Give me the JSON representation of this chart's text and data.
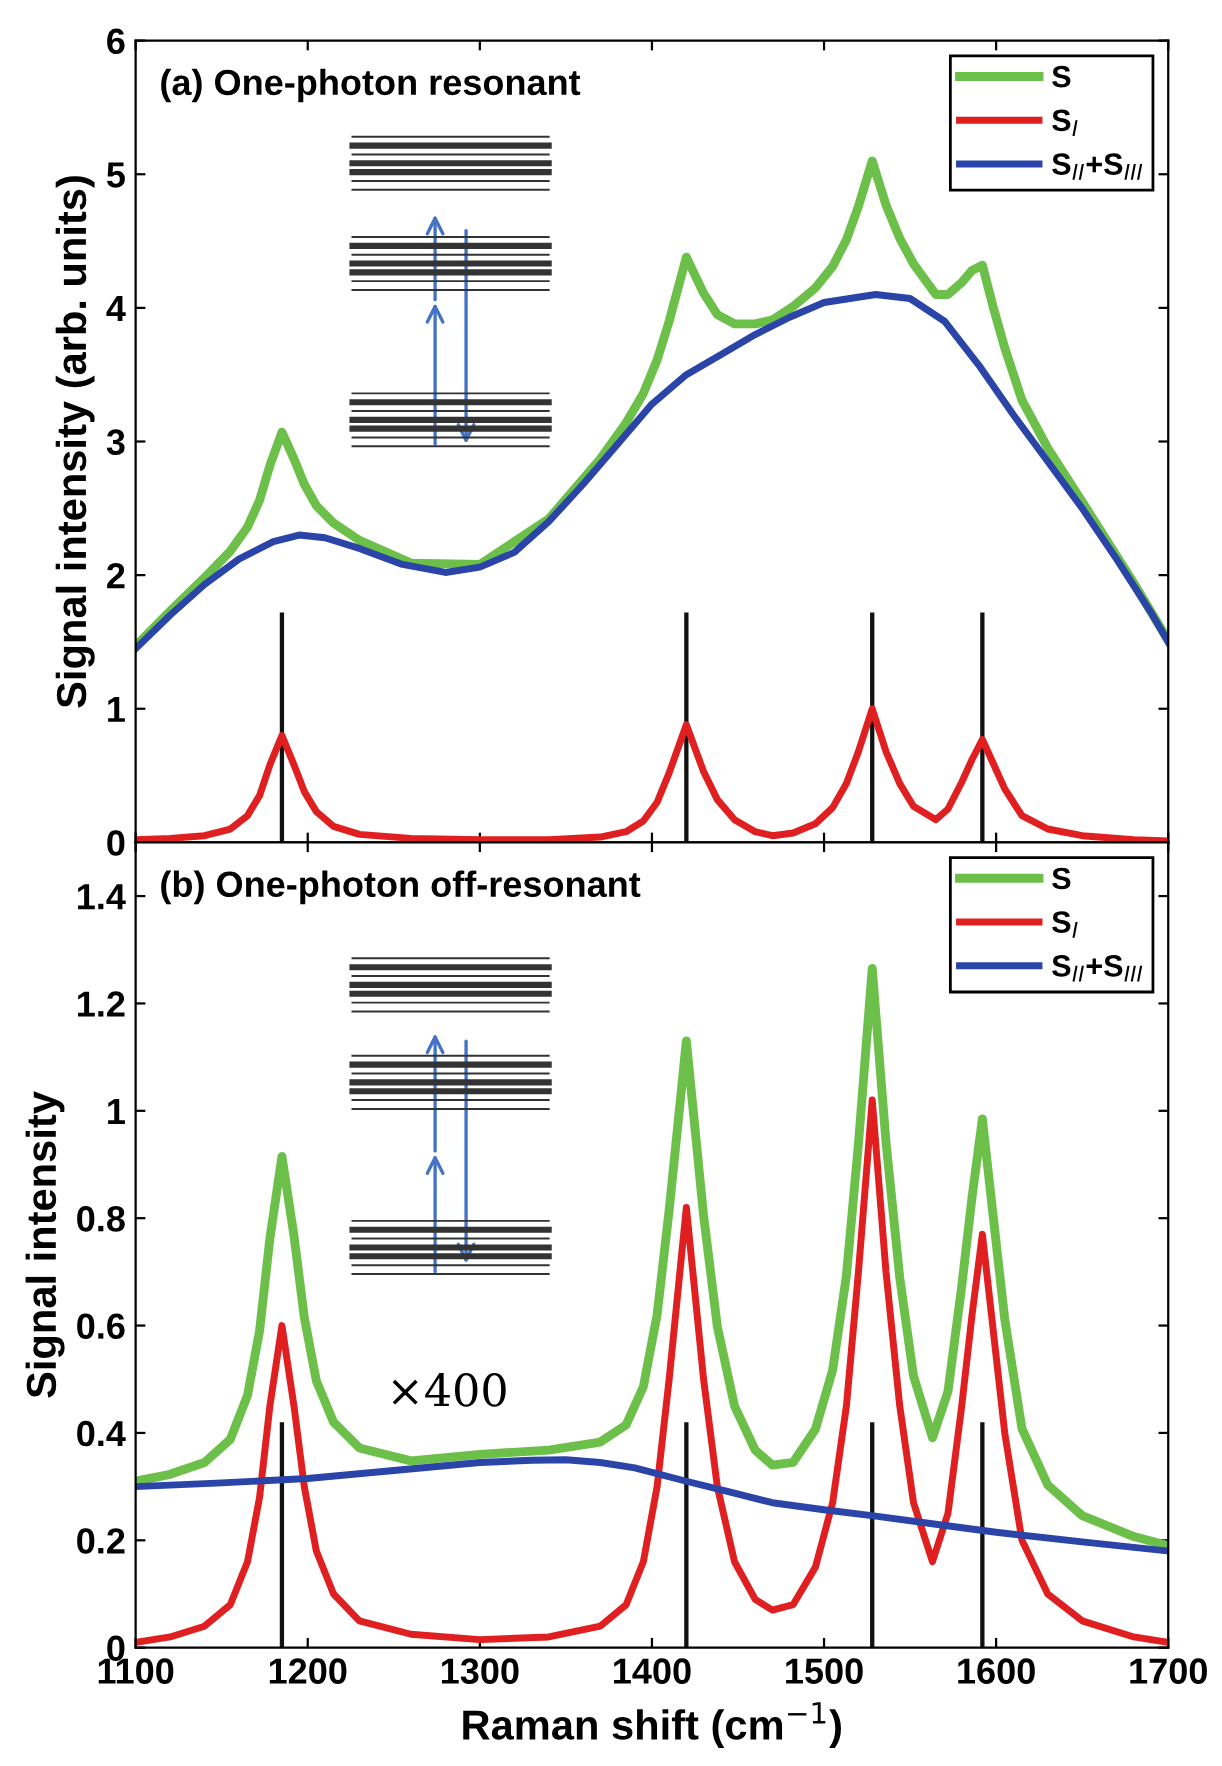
{
  "chart_data": [
    {
      "type": "line",
      "title": "(a) One-photon resonant",
      "ylabel": "Signal intensity (arb. units)",
      "xlim": [
        1100,
        1700
      ],
      "xticks": [
        1100,
        1200,
        1300,
        1400,
        1500,
        1600,
        1700
      ],
      "ylim": [
        0,
        6
      ],
      "yticks": [
        0,
        1,
        2,
        3,
        4,
        5,
        6
      ],
      "tick_labels": "y",
      "legend": "top right",
      "grid": false,
      "series": [
        {
          "type": "bar",
          "color": "#111111",
          "x": [
            1185,
            1420,
            1528,
            1592
          ],
          "values": [
            1.72,
            1.72,
            1.72,
            1.72
          ]
        },
        {
          "name": "S",
          "color": "#6cc04a",
          "x": [
            1100,
            1120,
            1140,
            1155,
            1165,
            1172,
            1178,
            1185,
            1192,
            1198,
            1205,
            1215,
            1230,
            1260,
            1300,
            1340,
            1370,
            1385,
            1395,
            1403,
            1410,
            1420,
            1430,
            1438,
            1448,
            1460,
            1470,
            1482,
            1495,
            1505,
            1513,
            1520,
            1528,
            1536,
            1544,
            1552,
            1565,
            1572,
            1580,
            1586,
            1592,
            1598,
            1605,
            1615,
            1630,
            1650,
            1680,
            1700
          ],
          "values": [
            1.47,
            1.73,
            1.98,
            2.18,
            2.36,
            2.56,
            2.82,
            3.07,
            2.87,
            2.68,
            2.52,
            2.39,
            2.26,
            2.09,
            2.08,
            2.42,
            2.87,
            3.14,
            3.36,
            3.61,
            3.9,
            4.38,
            4.11,
            3.95,
            3.88,
            3.88,
            3.91,
            4.01,
            4.15,
            4.31,
            4.51,
            4.76,
            5.1,
            4.77,
            4.52,
            4.33,
            4.1,
            4.1,
            4.19,
            4.28,
            4.32,
            4.02,
            3.7,
            3.31,
            2.95,
            2.55,
            1.94,
            1.51
          ]
        },
        {
          "name": "S$_{I}$",
          "color": "#e02020",
          "x": [
            1100,
            1120,
            1140,
            1155,
            1165,
            1172,
            1178,
            1185,
            1192,
            1198,
            1205,
            1215,
            1230,
            1260,
            1300,
            1340,
            1370,
            1385,
            1395,
            1403,
            1410,
            1420,
            1430,
            1438,
            1448,
            1460,
            1470,
            1482,
            1495,
            1505,
            1513,
            1520,
            1528,
            1536,
            1544,
            1552,
            1565,
            1572,
            1580,
            1586,
            1592,
            1598,
            1605,
            1615,
            1630,
            1650,
            1680,
            1700
          ],
          "values": [
            0.02,
            0.03,
            0.05,
            0.1,
            0.2,
            0.35,
            0.58,
            0.8,
            0.58,
            0.38,
            0.23,
            0.12,
            0.06,
            0.03,
            0.02,
            0.02,
            0.04,
            0.08,
            0.16,
            0.3,
            0.52,
            0.88,
            0.53,
            0.32,
            0.17,
            0.08,
            0.05,
            0.07,
            0.14,
            0.26,
            0.44,
            0.68,
            1.0,
            0.68,
            0.44,
            0.27,
            0.17,
            0.25,
            0.45,
            0.62,
            0.77,
            0.6,
            0.4,
            0.2,
            0.1,
            0.05,
            0.02,
            0.01
          ]
        },
        {
          "name": "S$_{II}$+S$_{III}$",
          "color": "#2a44a8",
          "x": [
            1100,
            1120,
            1140,
            1160,
            1180,
            1195,
            1210,
            1230,
            1255,
            1280,
            1300,
            1320,
            1340,
            1360,
            1380,
            1400,
            1420,
            1440,
            1460,
            1480,
            1500,
            1530,
            1550,
            1570,
            1590,
            1610,
            1630,
            1650,
            1670,
            1690,
            1700
          ],
          "values": [
            1.45,
            1.7,
            1.93,
            2.12,
            2.25,
            2.3,
            2.28,
            2.2,
            2.08,
            2.02,
            2.06,
            2.17,
            2.4,
            2.68,
            2.98,
            3.28,
            3.5,
            3.65,
            3.8,
            3.93,
            4.04,
            4.1,
            4.07,
            3.9,
            3.57,
            3.2,
            2.85,
            2.5,
            2.12,
            1.72,
            1.5
          ]
        }
      ]
    },
    {
      "type": "line",
      "title": "(b) One-photon off-resonant",
      "xlabel": "Raman shift (cm$^{−1}$)",
      "ylabel": "Signal intensity",
      "xlim": [
        1100,
        1700
      ],
      "xticks": [
        1100,
        1200,
        1300,
        1400,
        1500,
        1600,
        1700
      ],
      "ylim": [
        0,
        1.5
      ],
      "yticks": [
        0,
        0.2,
        0.4,
        0.6,
        0.8,
        1,
        1.2,
        1.4
      ],
      "legend": "top right",
      "grid": false,
      "annotations": [
        "×400"
      ],
      "series": [
        {
          "type": "bar",
          "color": "#111111",
          "x": [
            1185,
            1420,
            1528,
            1592
          ],
          "values": [
            0.42,
            0.42,
            0.42,
            0.42
          ]
        },
        {
          "name": "S",
          "color": "#6cc04a",
          "x": [
            1100,
            1120,
            1140,
            1155,
            1165,
            1172,
            1178,
            1185,
            1192,
            1198,
            1205,
            1215,
            1230,
            1260,
            1300,
            1340,
            1370,
            1385,
            1395,
            1403,
            1410,
            1420,
            1430,
            1438,
            1448,
            1460,
            1470,
            1482,
            1495,
            1505,
            1513,
            1520,
            1528,
            1536,
            1544,
            1552,
            1563,
            1572,
            1580,
            1586,
            1592,
            1598,
            1605,
            1615,
            1630,
            1650,
            1680,
            1700
          ],
          "values": [
            0.31,
            0.323,
            0.345,
            0.388,
            0.47,
            0.59,
            0.762,
            0.915,
            0.767,
            0.615,
            0.497,
            0.42,
            0.372,
            0.348,
            0.36,
            0.368,
            0.383,
            0.415,
            0.486,
            0.62,
            0.815,
            1.13,
            0.805,
            0.598,
            0.45,
            0.368,
            0.34,
            0.345,
            0.407,
            0.517,
            0.693,
            0.939,
            1.265,
            0.942,
            0.689,
            0.506,
            0.391,
            0.477,
            0.673,
            0.839,
            0.985,
            0.812,
            0.612,
            0.408,
            0.303,
            0.246,
            0.207,
            0.19
          ]
        },
        {
          "name": "S$_{I}$",
          "color": "#e02020",
          "x": [
            1100,
            1120,
            1140,
            1155,
            1165,
            1172,
            1178,
            1185,
            1192,
            1198,
            1205,
            1215,
            1230,
            1260,
            1300,
            1340,
            1370,
            1385,
            1395,
            1403,
            1410,
            1420,
            1430,
            1438,
            1448,
            1460,
            1470,
            1482,
            1495,
            1505,
            1513,
            1520,
            1528,
            1536,
            1544,
            1552,
            1563,
            1572,
            1580,
            1586,
            1592,
            1598,
            1605,
            1615,
            1630,
            1650,
            1680,
            1700
          ],
          "values": [
            0.01,
            0.02,
            0.04,
            0.08,
            0.16,
            0.28,
            0.45,
            0.6,
            0.45,
            0.3,
            0.18,
            0.1,
            0.05,
            0.025,
            0.015,
            0.02,
            0.04,
            0.08,
            0.16,
            0.3,
            0.5,
            0.82,
            0.5,
            0.3,
            0.16,
            0.09,
            0.07,
            0.08,
            0.15,
            0.27,
            0.45,
            0.7,
            1.02,
            0.7,
            0.45,
            0.27,
            0.16,
            0.25,
            0.45,
            0.62,
            0.77,
            0.6,
            0.4,
            0.2,
            0.1,
            0.05,
            0.02,
            0.01
          ]
        },
        {
          "name": "S$_{II}$+S$_{III}$",
          "color": "#2a44a8",
          "x": [
            1100,
            1150,
            1200,
            1250,
            1300,
            1330,
            1350,
            1370,
            1390,
            1420,
            1445,
            1470,
            1500,
            1530,
            1565,
            1600,
            1650,
            1700
          ],
          "values": [
            0.3,
            0.307,
            0.315,
            0.33,
            0.345,
            0.349,
            0.35,
            0.345,
            0.335,
            0.31,
            0.29,
            0.27,
            0.257,
            0.245,
            0.23,
            0.215,
            0.197,
            0.18
          ]
        }
      ]
    }
  ]
}
